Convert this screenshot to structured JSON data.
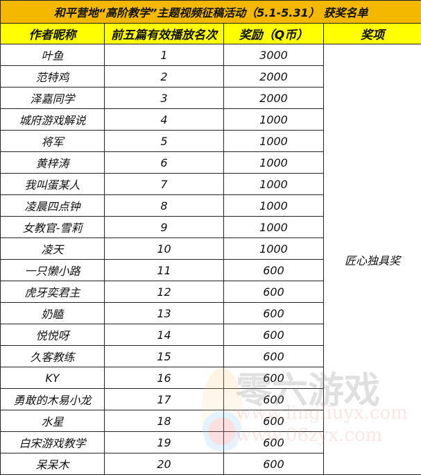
{
  "title": "和平营地“高阶教学”主题视频征稿活动（5.1-5.31） 获奖名单",
  "headers": [
    "作者昵称",
    "前五篇有效播放名次",
    "奖励（Q币）",
    "奖项"
  ],
  "award": "匠心独具奖",
  "rows": [
    [
      "叶鱼",
      "1",
      "3000"
    ],
    [
      "范特鸡",
      "2",
      "2000"
    ],
    [
      "泽嘉同学",
      "3",
      "2000"
    ],
    [
      "城府游戏解说",
      "4",
      "1000"
    ],
    [
      "将军",
      "5",
      "1000"
    ],
    [
      "黄梓涛",
      "6",
      "1000"
    ],
    [
      "我叫蛋某人",
      "7",
      "1000"
    ],
    [
      "凌晨四点钟",
      "8",
      "1000"
    ],
    [
      "女教官-雪莉",
      "9",
      "1000"
    ],
    [
      "凌天",
      "10",
      "1000"
    ],
    [
      "一只懒小路",
      "11",
      "600"
    ],
    [
      "虎牙奕君主",
      "12",
      "600"
    ],
    [
      "奶瞌",
      "13",
      "600"
    ],
    [
      "悦悦呀",
      "14",
      "600"
    ],
    [
      "久客教练",
      "15",
      "600"
    ],
    [
      "KY",
      "16",
      "600"
    ],
    [
      "勇敢的木易小龙",
      "17",
      "600"
    ],
    [
      "水星",
      "18",
      "600"
    ],
    [
      "白宋游戏教学",
      "19",
      "600"
    ],
    [
      "呆呆木",
      "20",
      "600"
    ]
  ],
  "watermark": {
    "name": "零六游戏",
    "url1": "www.lingliuyx.com",
    "url2": "www.06zyx.com"
  }
}
